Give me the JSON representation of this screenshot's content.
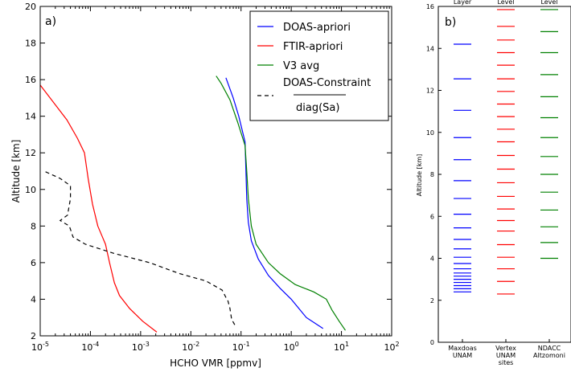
{
  "chart_data": [
    {
      "type": "line",
      "panel_label": "a)",
      "xlabel": "HCHO VMR [ppmv]",
      "ylabel": "Altitude [km]",
      "xscale": "log",
      "xlim": [
        1e-05,
        100
      ],
      "ylim": [
        2,
        20
      ],
      "x_tick_labels": [
        {
          "base": "10",
          "exp": "-5"
        },
        {
          "base": "10",
          "exp": "-4"
        },
        {
          "base": "10",
          "exp": "-3"
        },
        {
          "base": "10",
          "exp": "-2"
        },
        {
          "base": "10",
          "exp": "-1"
        },
        {
          "base": "10",
          "exp": "0"
        },
        {
          "base": "10",
          "exp": "1"
        },
        {
          "base": "10",
          "exp": "2"
        }
      ],
      "y_ticks": [
        "2",
        "4",
        "6",
        "8",
        "10",
        "12",
        "14",
        "16",
        "18",
        "20"
      ],
      "legend_placement": "top-right",
      "series": [
        {
          "name": "DOAS-apriori",
          "color": "#0000ff",
          "dash": "solid",
          "points": [
            [
              4.3,
              2.4
            ],
            [
              2.0,
              3.0
            ],
            [
              1.0,
              4.0
            ],
            [
              0.6,
              4.6
            ],
            [
              0.35,
              5.3
            ],
            [
              0.22,
              6.2
            ],
            [
              0.16,
              7.2
            ],
            [
              0.14,
              8.2
            ],
            [
              0.13,
              9.5
            ],
            [
              0.125,
              11.0
            ],
            [
              0.12,
              12.6
            ],
            [
              0.09,
              14.0
            ],
            [
              0.07,
              15.0
            ],
            [
              0.05,
              16.1
            ]
          ]
        },
        {
          "name": "FTIR-apriori",
          "color": "#ff0000",
          "dash": "solid",
          "points": [
            [
              0.0021,
              2.2
            ],
            [
              0.0011,
              2.8
            ],
            [
              0.0006,
              3.5
            ],
            [
              0.00038,
              4.2
            ],
            [
              0.0003,
              4.9
            ],
            [
              0.00024,
              6.0
            ],
            [
              0.0002,
              7.0
            ],
            [
              0.00014,
              8.0
            ],
            [
              0.00011,
              9.2
            ],
            [
              9e-05,
              10.6
            ],
            [
              7.6e-05,
              12.0
            ],
            [
              5.5e-05,
              12.8
            ],
            [
              3.4e-05,
              13.8
            ],
            [
              1e-05,
              15.7
            ]
          ]
        },
        {
          "name": "V3 avg",
          "color": "#008000",
          "dash": "solid",
          "points": [
            [
              12.0,
              2.3
            ],
            [
              9.0,
              2.8
            ],
            [
              6.5,
              3.4
            ],
            [
              5.0,
              4.0
            ],
            [
              2.8,
              4.4
            ],
            [
              1.2,
              4.8
            ],
            [
              0.6,
              5.4
            ],
            [
              0.35,
              6.0
            ],
            [
              0.2,
              7.0
            ],
            [
              0.16,
              8.0
            ],
            [
              0.14,
              9.5
            ],
            [
              0.13,
              11.0
            ],
            [
              0.12,
              12.4
            ],
            [
              0.085,
              13.7
            ],
            [
              0.06,
              14.9
            ],
            [
              0.04,
              15.8
            ],
            [
              0.032,
              16.2
            ]
          ]
        },
        {
          "name": "DOAS-Constraint / diag(Sa)",
          "name_top": "DOAS-Constraint",
          "name_bottom": "diag(Sa)",
          "color": "#000000",
          "dash": "dashed",
          "points": [
            [
              0.075,
              2.6
            ],
            [
              0.065,
              2.9
            ],
            [
              0.06,
              3.5
            ],
            [
              0.055,
              3.9
            ],
            [
              0.05,
              4.1
            ],
            [
              0.042,
              4.5
            ],
            [
              0.02,
              5.0
            ],
            [
              0.006,
              5.4
            ],
            [
              0.0015,
              6.0
            ],
            [
              0.0003,
              6.5
            ],
            [
              8e-05,
              7.0
            ],
            [
              4.5e-05,
              7.4
            ],
            [
              3.8e-05,
              8.0
            ],
            [
              2.5e-05,
              8.3
            ],
            [
              3.5e-05,
              8.6
            ],
            [
              4e-05,
              9.5
            ],
            [
              4e-05,
              10.2
            ],
            [
              2.5e-05,
              10.6
            ],
            [
              1.2e-05,
              11.0
            ]
          ]
        }
      ]
    },
    {
      "type": "scatter",
      "panel_label": "b)",
      "ylabel": "Altitude [km]",
      "ylim": [
        0,
        16
      ],
      "y_ticks": [
        "0",
        "2",
        "4",
        "6",
        "8",
        "10",
        "12",
        "14",
        "16"
      ],
      "top_labels": [
        "Layer",
        "Level",
        "Level"
      ],
      "categories": [
        {
          "lines": [
            "Maxdoas",
            "UNAM"
          ],
          "color": "#0000ff",
          "levels": [
            2.4,
            2.55,
            2.7,
            2.85,
            3.0,
            3.15,
            3.3,
            3.5,
            3.75,
            4.05,
            4.45,
            4.9,
            5.45,
            6.1,
            6.85,
            7.7,
            8.7,
            9.75,
            11.05,
            12.55,
            14.2
          ]
        },
        {
          "lines": [
            "Vertex",
            "UNAM",
            "sites"
          ],
          "color": "#ff0000",
          "levels": [
            2.3,
            2.9,
            3.5,
            4.05,
            4.65,
            5.3,
            5.8,
            6.35,
            6.95,
            7.6,
            8.25,
            8.9,
            9.55,
            10.15,
            10.75,
            11.35,
            11.95,
            12.55,
            13.2,
            13.8,
            14.4,
            15.05,
            15.85
          ]
        },
        {
          "lines": [
            "NDACC",
            "Altzomoni"
          ],
          "color": "#008000",
          "levels": [
            4.0,
            4.75,
            5.5,
            6.3,
            7.15,
            8.0,
            8.85,
            9.75,
            10.7,
            11.7,
            12.75,
            13.8,
            14.8,
            15.85
          ]
        }
      ]
    }
  ]
}
